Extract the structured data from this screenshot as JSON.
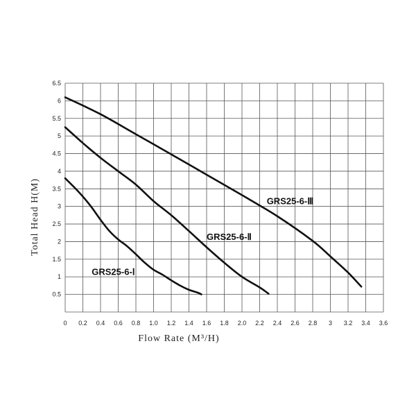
{
  "chart_data": {
    "type": "line",
    "title": "",
    "xlabel": "Flow Rate (M³/H)",
    "ylabel": "Total Head H(M)",
    "xlim": [
      0,
      3.6
    ],
    "ylim": [
      0,
      6.5
    ],
    "x_ticks": [
      "0",
      "0.2",
      "0.4",
      "0.6",
      "0.8",
      "1.0",
      "1.2",
      "1.4",
      "1.6",
      "1.8",
      "2.0",
      "2.2",
      "2.4",
      "2.6",
      "2.8",
      "3",
      "3.2",
      "3.4",
      "3.6"
    ],
    "y_ticks": [
      "0.5",
      "1",
      "1.5",
      "2",
      "2.5",
      "3",
      "3.5",
      "4",
      "4.5",
      "5",
      "5.5",
      "6",
      "6.5"
    ],
    "grid": true,
    "line_color": "#111111",
    "series": [
      {
        "name": "GRS25-6-Ⅰ",
        "x": [
          0,
          0.1,
          0.2,
          0.3,
          0.4,
          0.5,
          0.6,
          0.7,
          0.8,
          0.9,
          1.0,
          1.1,
          1.2,
          1.3,
          1.4,
          1.5,
          1.54
        ],
        "y": [
          3.8,
          3.55,
          3.28,
          2.97,
          2.62,
          2.3,
          2.06,
          1.87,
          1.64,
          1.4,
          1.2,
          1.06,
          0.9,
          0.75,
          0.63,
          0.55,
          0.5
        ]
      },
      {
        "name": "GRS25-6-Ⅱ",
        "x": [
          0,
          0.2,
          0.4,
          0.6,
          0.8,
          1.0,
          1.2,
          1.4,
          1.6,
          1.8,
          2.0,
          2.2,
          2.3
        ],
        "y": [
          5.25,
          4.8,
          4.38,
          4.0,
          3.62,
          3.15,
          2.75,
          2.3,
          1.84,
          1.4,
          1.0,
          0.7,
          0.52
        ]
      },
      {
        "name": "GRS25-6-Ⅲ",
        "x": [
          0,
          0.4,
          0.8,
          1.2,
          1.6,
          2.0,
          2.4,
          2.8,
          3.0,
          3.2,
          3.35
        ],
        "y": [
          6.1,
          5.62,
          5.05,
          4.48,
          3.9,
          3.32,
          2.72,
          2.02,
          1.58,
          1.12,
          0.72
        ]
      }
    ],
    "series_labels": [
      {
        "text": "GRS25-6-Ⅰ",
        "x": 0.3,
        "y": 1.05
      },
      {
        "text": "GRS25-6-Ⅱ",
        "x": 1.6,
        "y": 2.05
      },
      {
        "text": "GRS25-6-Ⅲ",
        "x": 2.28,
        "y": 3.06
      }
    ]
  }
}
